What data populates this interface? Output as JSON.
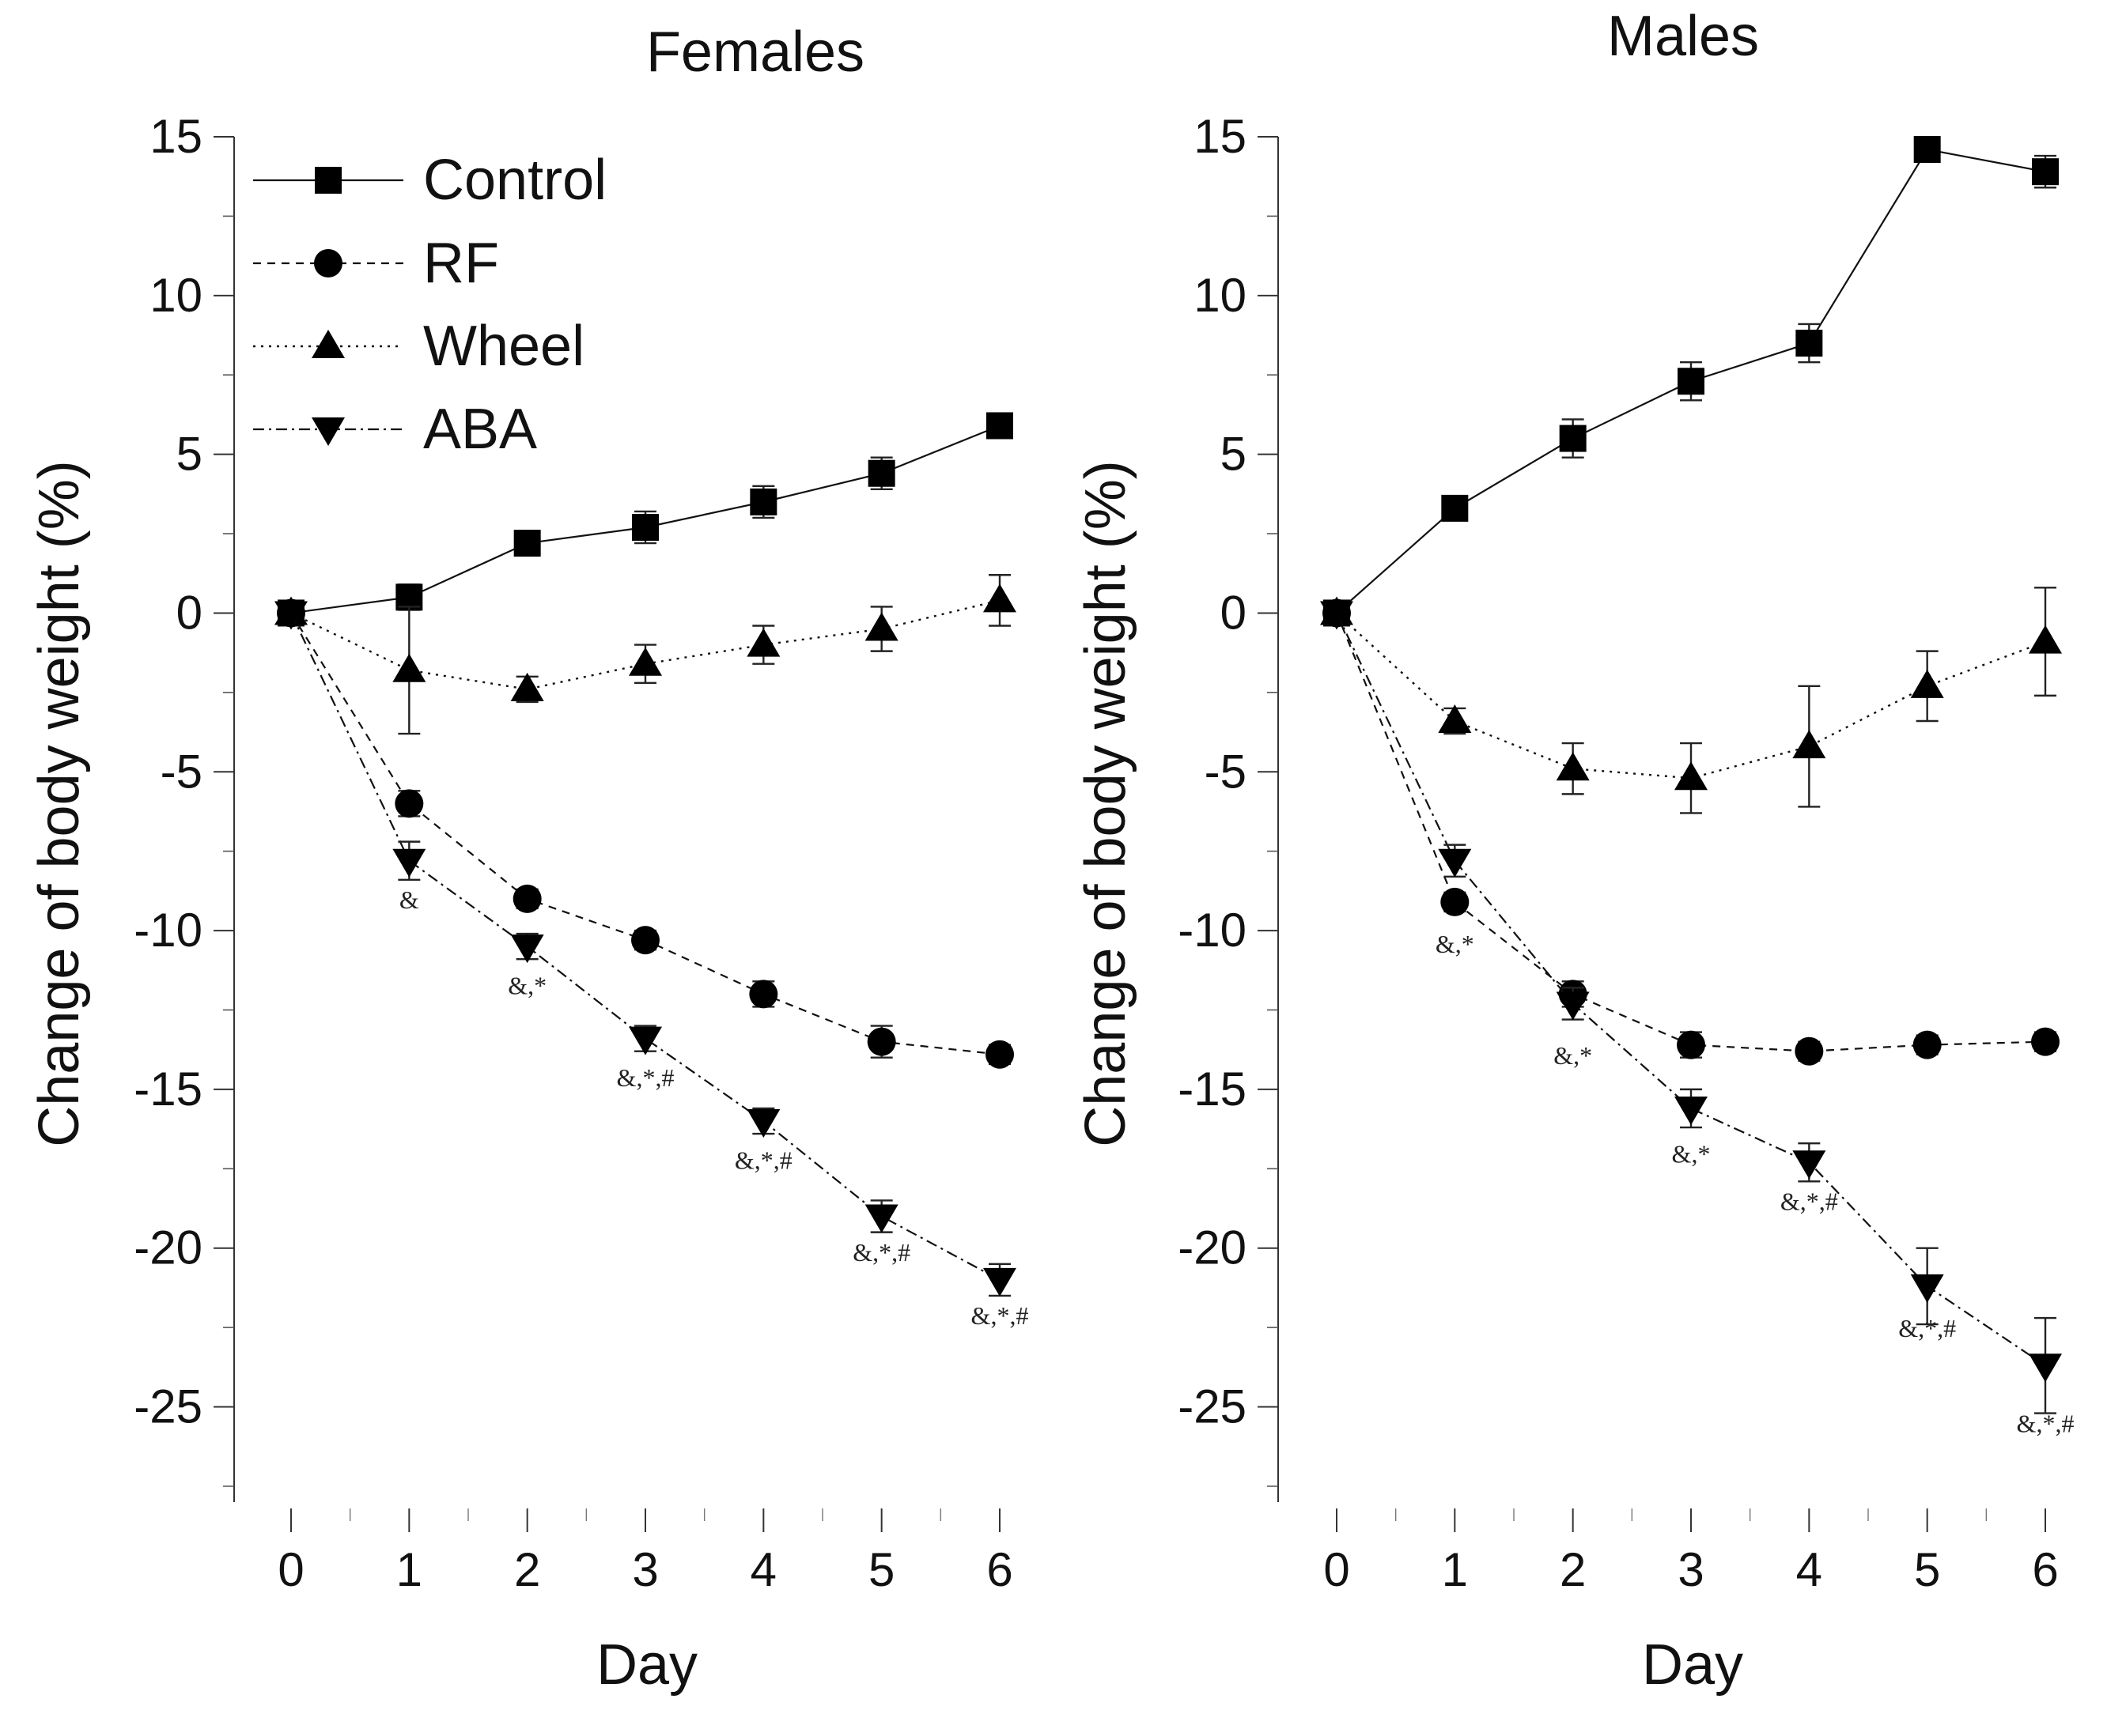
{
  "chart_data": [
    {
      "type": "line",
      "title": "Females",
      "xlabel": "Day",
      "ylabel": "Change of body weight (%)",
      "xlim": [
        -0.5,
        6.5
      ],
      "ylim": [
        -28,
        15
      ],
      "x_ticks": [
        0,
        1,
        2,
        3,
        4,
        5,
        6
      ],
      "y_ticks": [
        15,
        10,
        5,
        0,
        -5,
        -10,
        -15,
        -20,
        -25
      ],
      "x_minor_ticks": [
        0.5,
        1.5,
        2.5,
        3.5,
        4.5,
        5.5
      ],
      "y_minor_ticks": [
        12.5,
        7.5,
        2.5,
        -2.5,
        -7.5,
        -12.5,
        -17.5,
        -22.5,
        -27.5
      ],
      "legend": "top-left",
      "x": [
        0,
        1,
        2,
        3,
        4,
        5,
        6
      ],
      "series": [
        {
          "name": "Control",
          "marker": "square",
          "line": "solid",
          "values": [
            0,
            0.5,
            2.2,
            2.7,
            3.5,
            4.4,
            5.9
          ],
          "errors": [
            0,
            0.4,
            0.3,
            0.5,
            0.5,
            0.5,
            0.3
          ]
        },
        {
          "name": "RF",
          "marker": "circle",
          "line": "dashed",
          "values": [
            0,
            -6.0,
            -9.0,
            -10.3,
            -12.0,
            -13.5,
            -13.9
          ],
          "errors": [
            0,
            0.4,
            0.3,
            0.3,
            0.4,
            0.5,
            0.3
          ]
        },
        {
          "name": "Wheel",
          "marker": "triangle-up",
          "line": "dotted",
          "values": [
            0,
            -1.8,
            -2.4,
            -1.6,
            -1.0,
            -0.5,
            0.4
          ],
          "errors": [
            0,
            2.0,
            0.4,
            0.6,
            0.6,
            0.7,
            0.8
          ]
        },
        {
          "name": "ABA",
          "marker": "triangle-down",
          "line": "dash-dot",
          "values": [
            0,
            -7.8,
            -10.5,
            -13.4,
            -16.0,
            -19.0,
            -21.0
          ],
          "errors": [
            0,
            0.6,
            0.4,
            0.4,
            0.4,
            0.5,
            0.5
          ]
        }
      ],
      "annotations": [
        {
          "x": 1,
          "y": -9.3,
          "text": "&"
        },
        {
          "x": 2,
          "y": -12.0,
          "text": "&,*"
        },
        {
          "x": 3,
          "y": -14.9,
          "text": "&,*,#"
        },
        {
          "x": 4,
          "y": -17.5,
          "text": "&,*,#"
        },
        {
          "x": 5,
          "y": -20.4,
          "text": "&,*,#"
        },
        {
          "x": 6,
          "y": -22.4,
          "text": "&,*,#"
        }
      ]
    },
    {
      "type": "line",
      "title": "Males",
      "xlabel": "Day",
      "ylabel": "Change of body weight (%)",
      "xlim": [
        -0.5,
        6.5
      ],
      "ylim": [
        -28,
        15
      ],
      "x_ticks": [
        0,
        1,
        2,
        3,
        4,
        5,
        6
      ],
      "y_ticks": [
        15,
        10,
        5,
        0,
        -5,
        -10,
        -15,
        -20,
        -25
      ],
      "x_minor_ticks": [
        0.5,
        1.5,
        2.5,
        3.5,
        4.5,
        5.5
      ],
      "y_minor_ticks": [
        12.5,
        7.5,
        2.5,
        -2.5,
        -7.5,
        -12.5,
        -17.5,
        -22.5,
        -27.5
      ],
      "legend": "none",
      "x": [
        0,
        1,
        2,
        3,
        4,
        5,
        6
      ],
      "series": [
        {
          "name": "Control",
          "marker": "square",
          "line": "solid",
          "values": [
            0,
            3.3,
            5.5,
            7.3,
            8.5,
            14.6,
            13.9
          ],
          "errors": [
            0,
            0.3,
            0.6,
            0.6,
            0.6,
            0.2,
            0.5
          ]
        },
        {
          "name": "RF",
          "marker": "circle",
          "line": "dashed",
          "values": [
            0,
            -9.1,
            -12.0,
            -13.6,
            -13.8,
            -13.6,
            -13.5
          ],
          "errors": [
            0,
            0.3,
            0.4,
            0.4,
            0.3,
            0.3,
            0.3
          ]
        },
        {
          "name": "Wheel",
          "marker": "triangle-up",
          "line": "dotted",
          "values": [
            0,
            -3.4,
            -4.9,
            -5.2,
            -4.2,
            -2.3,
            -0.9
          ],
          "errors": [
            0,
            0.4,
            0.8,
            1.1,
            1.9,
            1.1,
            1.7
          ]
        },
        {
          "name": "ABA",
          "marker": "triangle-down",
          "line": "dash-dot",
          "values": [
            0,
            -7.8,
            -12.3,
            -15.6,
            -17.3,
            -21.2,
            -23.7
          ],
          "errors": [
            0,
            0.5,
            0.5,
            0.6,
            0.6,
            1.2,
            1.5
          ]
        }
      ],
      "annotations": [
        {
          "x": 1,
          "y": -10.7,
          "text": "&,*"
        },
        {
          "x": 2,
          "y": -14.2,
          "text": "&,*"
        },
        {
          "x": 3,
          "y": -17.3,
          "text": "&,*"
        },
        {
          "x": 4,
          "y": -18.8,
          "text": "&,*,#"
        },
        {
          "x": 5,
          "y": -22.8,
          "text": "&,*,#"
        },
        {
          "x": 6,
          "y": -25.8,
          "text": "&,*,#"
        }
      ]
    }
  ]
}
